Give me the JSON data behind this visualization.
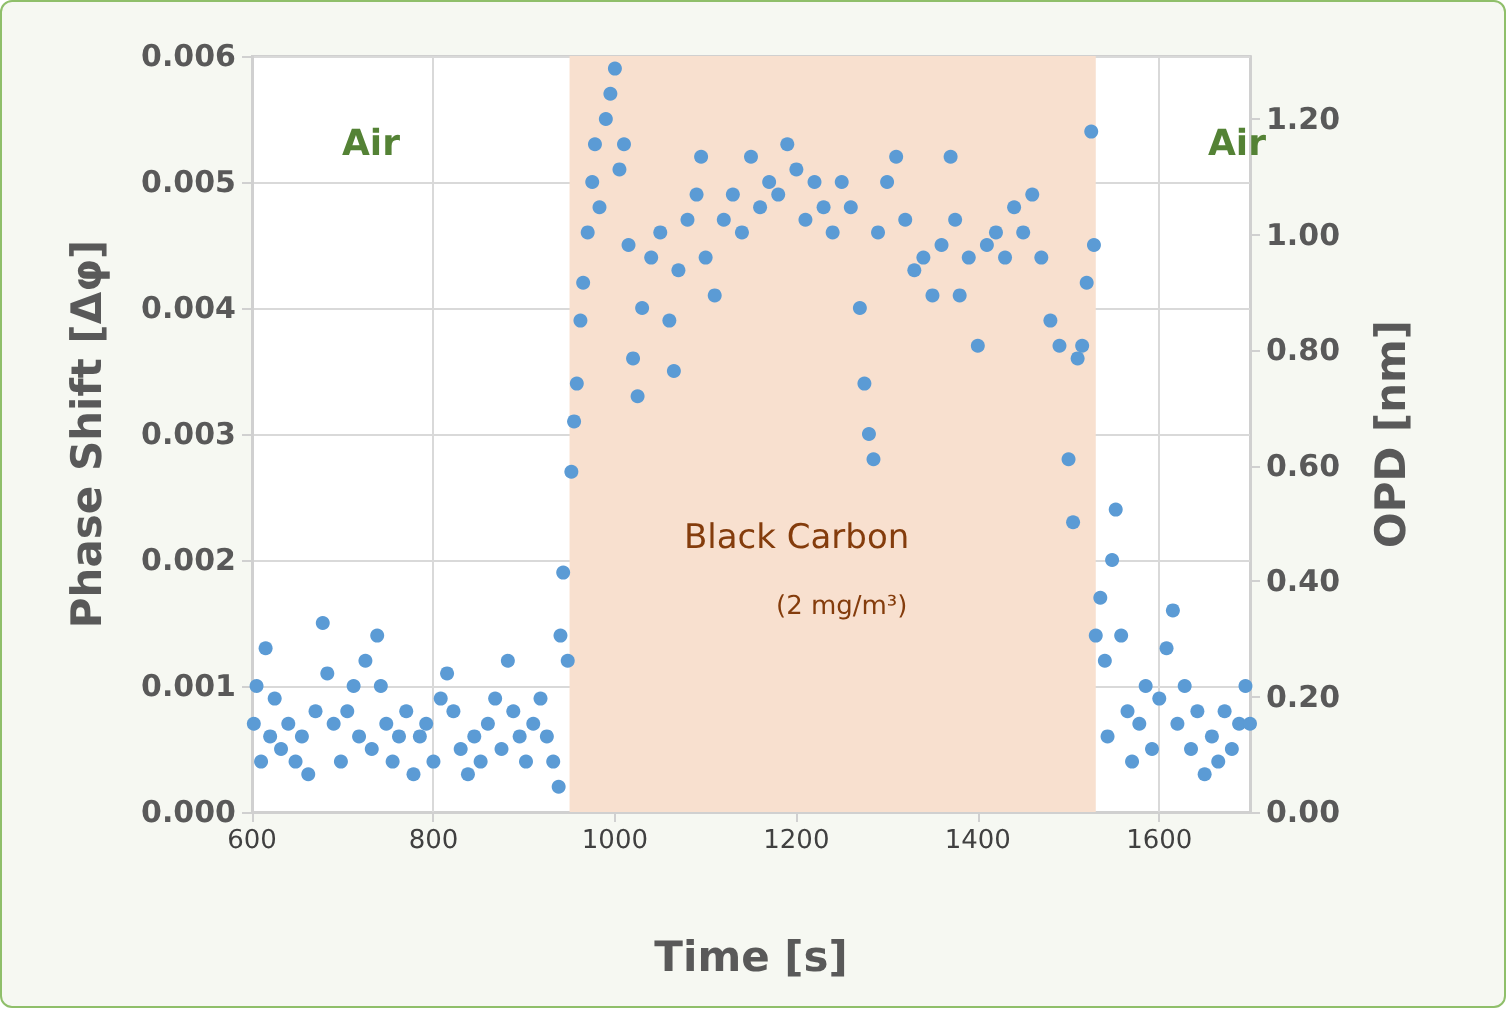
{
  "chart_data": {
    "type": "scatter",
    "xlabel": "Time [s]",
    "ylabel": "Phase Shift [Δφ]",
    "y2label": "OPD [nm]",
    "annotations": [
      "Air",
      "Air",
      "(2 mg/m³)"
    ],
    "bands": [
      {
        "axis": "x",
        "from": 950,
        "to": 1530,
        "label": "Black Carbon",
        "color": "#f8e0cf"
      }
    ],
    "xlim": [
      600,
      1700
    ],
    "xticks": [
      600,
      800,
      1000,
      1200,
      1400,
      1600
    ],
    "ylim": [
      0,
      0.006
    ],
    "yticks": [
      {
        "value": 0,
        "label": "0.000"
      },
      {
        "value": 0.001,
        "label": "0.001"
      },
      {
        "value": 0.002,
        "label": "0.002"
      },
      {
        "value": 0.003,
        "label": "0.003"
      },
      {
        "value": 0.004,
        "label": "0.004"
      },
      {
        "value": 0.005,
        "label": "0.005"
      },
      {
        "value": 0.006,
        "label": "0.006"
      }
    ],
    "y2lim": [
      0,
      1.31
    ],
    "y2ticks": [
      {
        "value": 0,
        "label": "0.00"
      },
      {
        "value": 0.2,
        "label": "0.20"
      },
      {
        "value": 0.4,
        "label": "0.40"
      },
      {
        "value": 0.6,
        "label": "0.60"
      },
      {
        "value": 0.8,
        "label": "0.80"
      },
      {
        "value": 1,
        "label": "1.00"
      },
      {
        "value": 1.2,
        "label": "1.20"
      }
    ],
    "grid": true,
    "marker": "circle",
    "series": [
      {
        "color": "#5b9bd5",
        "x": [
          602,
          605,
          610,
          615,
          620,
          625,
          632,
          640,
          648,
          655,
          662,
          670,
          678,
          683,
          690,
          698,
          705,
          712,
          718,
          725,
          732,
          738,
          742,
          748,
          755,
          762,
          770,
          778,
          785,
          792,
          800,
          808,
          815,
          822,
          830,
          838,
          845,
          852,
          860,
          868,
          875,
          882,
          888,
          895,
          902,
          910,
          918,
          925,
          932,
          938,
          940,
          943,
          948,
          952,
          955,
          958,
          962,
          965,
          970,
          975,
          978,
          983,
          990,
          995,
          1000,
          1005,
          1010,
          1015,
          1020,
          1025,
          1030,
          1040,
          1050,
          1060,
          1065,
          1070,
          1080,
          1090,
          1095,
          1100,
          1110,
          1120,
          1130,
          1140,
          1150,
          1160,
          1170,
          1180,
          1190,
          1200,
          1210,
          1220,
          1230,
          1240,
          1250,
          1260,
          1270,
          1275,
          1280,
          1285,
          1290,
          1300,
          1310,
          1320,
          1330,
          1340,
          1350,
          1360,
          1370,
          1375,
          1380,
          1390,
          1400,
          1410,
          1420,
          1430,
          1440,
          1450,
          1460,
          1470,
          1480,
          1490,
          1500,
          1505,
          1510,
          1515,
          1520,
          1525,
          1528,
          1530,
          1535,
          1540,
          1543,
          1548,
          1552,
          1558,
          1565,
          1570,
          1578,
          1585,
          1592,
          1600,
          1608,
          1615,
          1620,
          1628,
          1635,
          1642,
          1650,
          1658,
          1665,
          1672,
          1680,
          1688,
          1695,
          1700
        ],
        "values": [
          0.0007,
          0.001,
          0.0004,
          0.0013,
          0.0006,
          0.0009,
          0.0005,
          0.0007,
          0.0004,
          0.0006,
          0.0003,
          0.0008,
          0.0015,
          0.0011,
          0.0007,
          0.0004,
          0.0008,
          0.001,
          0.0006,
          0.0012,
          0.0005,
          0.0014,
          0.001,
          0.0007,
          0.0004,
          0.0006,
          0.0008,
          0.0003,
          0.0006,
          0.0007,
          0.0004,
          0.0009,
          0.0011,
          0.0008,
          0.0005,
          0.0003,
          0.0006,
          0.0004,
          0.0007,
          0.0009,
          0.0005,
          0.0012,
          0.0008,
          0.0006,
          0.0004,
          0.0007,
          0.0009,
          0.0006,
          0.0004,
          0.0002,
          0.0014,
          0.0019,
          0.0012,
          0.0027,
          0.0031,
          0.0034,
          0.0039,
          0.0042,
          0.0046,
          0.005,
          0.0053,
          0.0048,
          0.0055,
          0.0057,
          0.0059,
          0.0051,
          0.0053,
          0.0045,
          0.0036,
          0.0033,
          0.004,
          0.0044,
          0.0046,
          0.0039,
          0.0035,
          0.0043,
          0.0047,
          0.0049,
          0.0052,
          0.0044,
          0.0041,
          0.0047,
          0.0049,
          0.0046,
          0.0052,
          0.0048,
          0.005,
          0.0049,
          0.0053,
          0.0051,
          0.0047,
          0.005,
          0.0048,
          0.0046,
          0.005,
          0.0048,
          0.004,
          0.0034,
          0.003,
          0.0028,
          0.0046,
          0.005,
          0.0052,
          0.0047,
          0.0043,
          0.0044,
          0.0041,
          0.0045,
          0.0052,
          0.0047,
          0.0041,
          0.0044,
          0.0037,
          0.0045,
          0.0046,
          0.0044,
          0.0048,
          0.0046,
          0.0049,
          0.0044,
          0.0039,
          0.0037,
          0.0028,
          0.0023,
          0.0036,
          0.0037,
          0.0042,
          0.0054,
          0.0045,
          0.0014,
          0.0017,
          0.0012,
          0.0006,
          0.002,
          0.0024,
          0.0014,
          0.0008,
          0.0004,
          0.0007,
          0.001,
          0.0005,
          0.0009,
          0.0013,
          0.0016,
          0.0007,
          0.001,
          0.0005,
          0.0008,
          0.0003,
          0.0006,
          0.0004,
          0.0008,
          0.0005,
          0.0007,
          0.001,
          0.0007
        ]
      }
    ]
  }
}
